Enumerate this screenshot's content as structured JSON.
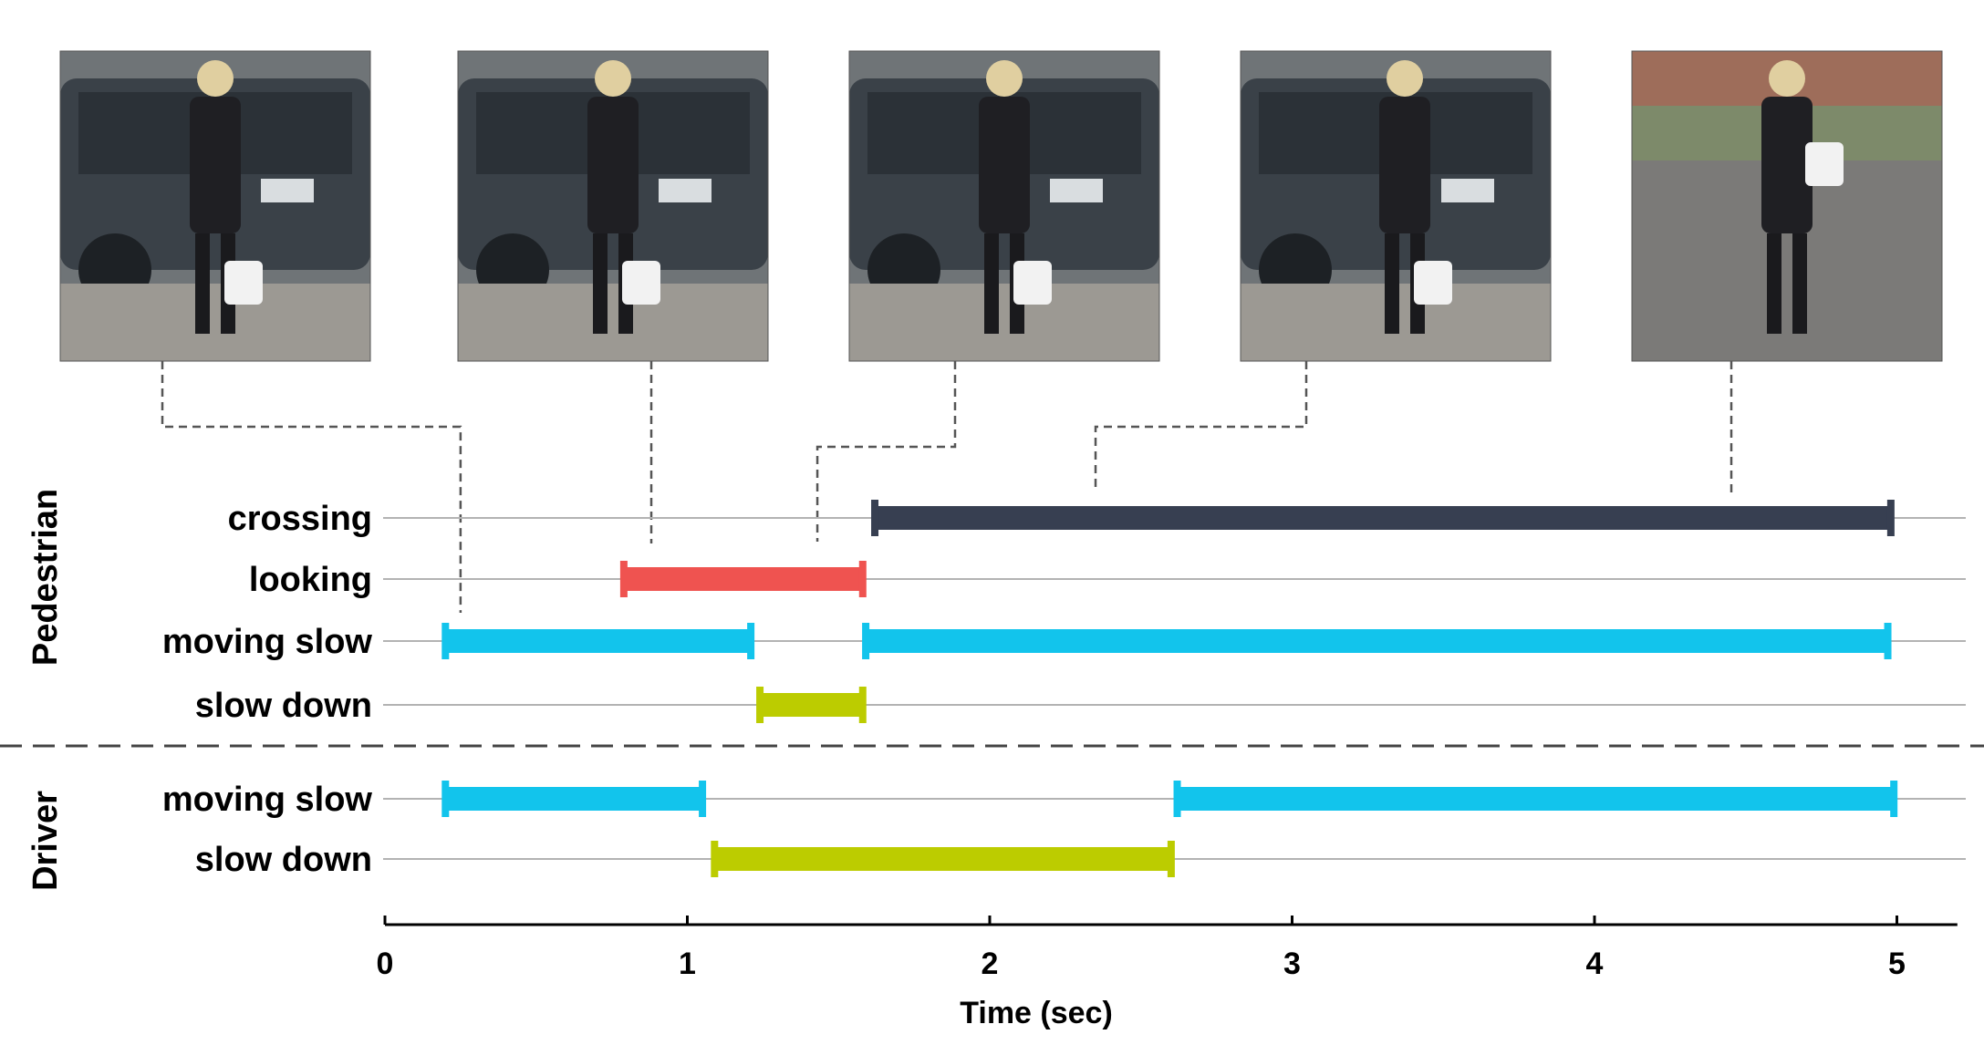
{
  "chart_data": {
    "type": "timeline",
    "xlabel": "Time (sec)",
    "xlim": [
      0,
      5.2
    ],
    "xticks": [
      0,
      1,
      2,
      3,
      4,
      5
    ],
    "groups": [
      {
        "name": "Pedestrian",
        "rows": [
          {
            "label": "crossing",
            "color": "#373F51",
            "intervals": [
              [
                1.62,
                4.98
              ]
            ]
          },
          {
            "label": "looking",
            "color": "#EF5350",
            "intervals": [
              [
                0.79,
                1.58
              ]
            ]
          },
          {
            "label": "moving slow",
            "color": "#12C4EC",
            "intervals": [
              [
                0.2,
                1.21
              ],
              [
                1.59,
                4.97
              ]
            ]
          },
          {
            "label": "slow down",
            "color": "#BCCC00",
            "intervals": [
              [
                1.24,
                1.58
              ]
            ]
          }
        ]
      },
      {
        "name": "Driver",
        "rows": [
          {
            "label": "moving slow",
            "color": "#12C4EC",
            "intervals": [
              [
                0.2,
                1.05
              ],
              [
                2.62,
                4.99
              ]
            ]
          },
          {
            "label": "slow down",
            "color": "#BCCC00",
            "intervals": [
              [
                1.09,
                2.6
              ]
            ]
          }
        ]
      }
    ],
    "frames": [
      {
        "description": "pedestrian standing beside parked SUV",
        "time": 0.25
      },
      {
        "description": "pedestrian stepping off curb",
        "time": 0.88
      },
      {
        "description": "pedestrian looking toward traffic",
        "time": 1.43
      },
      {
        "description": "pedestrian walking with bag",
        "time": 2.35
      },
      {
        "description": "pedestrian crossing the road",
        "time": 4.45
      }
    ]
  }
}
